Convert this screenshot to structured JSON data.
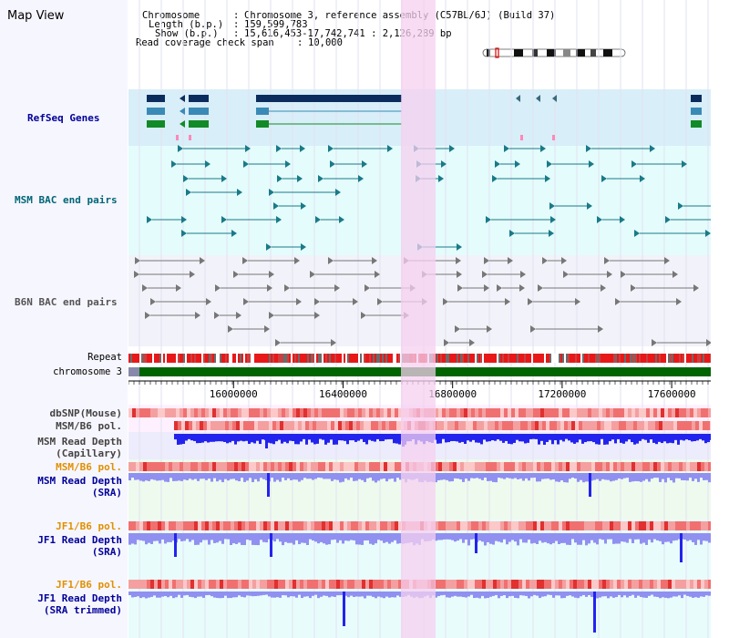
{
  "title": "Map View",
  "info": {
    "chromosome_key": "Chromosome",
    "chromosome_val": "Chromosome 3, reference assembly (C57BL/6J) (Build 37)",
    "length_key": "Length (b.p.)",
    "length_val": "159,599,783",
    "show_key": "Show (b.p.)",
    "show_val": "15,616,453-17,742,741 : 2,126,289 bp",
    "coverage_key": "Read coverage check span",
    "coverage_val": "10,000"
  },
  "tracks": {
    "refseq": "RefSeq Genes",
    "msm_bac": "MSM BAC end pairs",
    "b6n_bac": "B6N BAC end pairs",
    "repeat": "Repeat",
    "chromosome": "chromosome 3",
    "dbsnp": "dbSNP(Mouse)",
    "msm_pol1": "MSM/B6 pol.",
    "msm_depth_cap_1": "MSM Read Depth",
    "msm_depth_cap_2": "(Capillary)",
    "msm_pol2": "MSM/B6 pol.",
    "msm_depth_sra_1": "MSM Read Depth",
    "msm_depth_sra_2": "(SRA)",
    "jf1_pol1": "JF1/B6 pol.",
    "jf1_depth_sra_1": "JF1 Read Depth",
    "jf1_depth_sra_2": "(SRA)",
    "jf1_pol2": "JF1/B6 pol.",
    "jf1_depth_trim_1": "JF1 Read Depth",
    "jf1_depth_trim_2": "(SRA trimmed)"
  },
  "axis": {
    "ticks": [
      "16000000",
      "16400000",
      "16800000",
      "17200000",
      "17600000"
    ],
    "tick_values": [
      16000000,
      16400000,
      16800000,
      17200000,
      17600000
    ],
    "range": [
      15616453,
      17742741
    ]
  },
  "colors": {
    "refseq_bg": "#d8eef8",
    "bac_bg": "#e4fcfc",
    "highlight": "#f5d0f0",
    "depth_blue": "#2323ee",
    "depth_light": "#9090f0",
    "pol_red": "#f06060",
    "chrom_green": "#006400",
    "label_navy": "#000099",
    "label_teal": "#006677",
    "label_gray": "#444444",
    "label_orange": "#e09000"
  }
}
